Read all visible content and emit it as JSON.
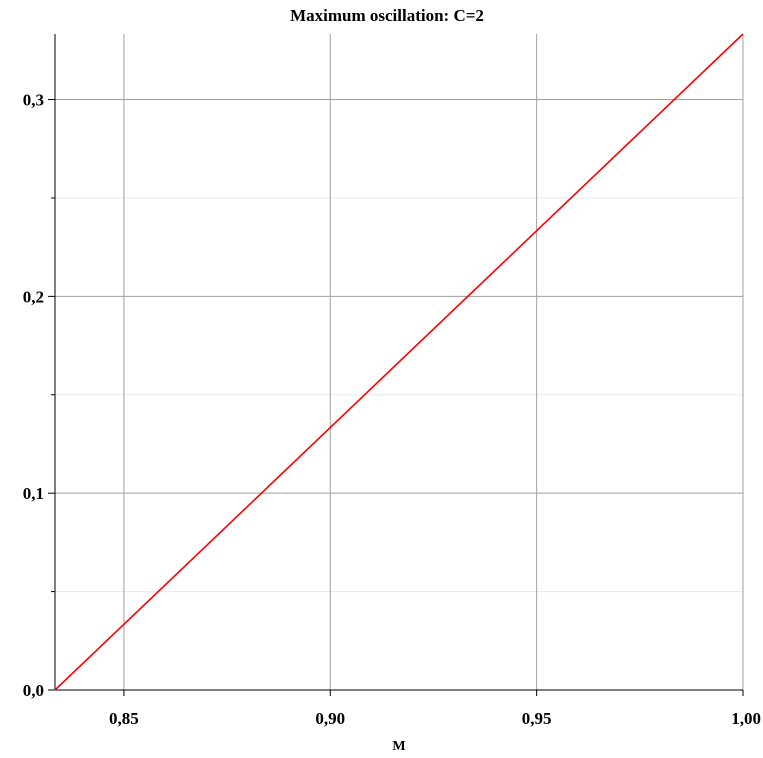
{
  "chart_data": {
    "type": "line",
    "title": "Maximum oscillation: C=2",
    "xlabel": "M",
    "ylabel": "",
    "xlim": [
      0.8333,
      1.0
    ],
    "ylim": [
      0.0,
      0.3333
    ],
    "x_ticks": [
      0.85,
      0.9,
      0.95,
      1.0
    ],
    "x_tick_labels": [
      "0,85",
      "0,90",
      "0,95",
      "1,00"
    ],
    "y_major_ticks": [
      0.0,
      0.1,
      0.2,
      0.3
    ],
    "y_tick_labels": [
      "0,0",
      "0,1",
      "0,2",
      "0,3"
    ],
    "y_minor_ticks": [
      0.05,
      0.15,
      0.25
    ],
    "grid": true,
    "series": [
      {
        "color": "#ff0000",
        "x": [
          0.8333,
          1.0
        ],
        "y": [
          0.0,
          0.3333
        ]
      }
    ]
  }
}
